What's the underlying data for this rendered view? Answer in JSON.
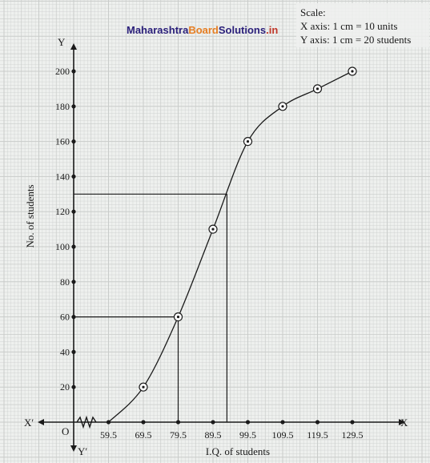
{
  "watermark": {
    "part1": "Maharashtra",
    "part2": "Board",
    "part3": "Solutions",
    "part4": ".in"
  },
  "scale_note": {
    "heading": "Scale:",
    "x_line": "X axis: 1 cm = 10 units",
    "y_line": "Y axis: 1 cm = 20 students"
  },
  "axes": {
    "x_end": "X",
    "x_neg": "X′",
    "y_end": "Y",
    "y_neg": "Y′",
    "origin": "O"
  },
  "colors": {
    "grid": "#c9ccca",
    "ink": "#1a1a1a",
    "wm_dark": "#2a1f7a",
    "wm_orange": "#e67e22",
    "wm_red": "#c0392b"
  },
  "chart_data": {
    "type": "line",
    "xlabel": "I.Q. of students",
    "ylabel": "No. of students",
    "x_ticks": [
      "59.5",
      "69.5",
      "79.5",
      "89.5",
      "99.5",
      "109.5",
      "119.5",
      "129.5"
    ],
    "y_ticks": [
      "20",
      "40",
      "60",
      "80",
      "100",
      "120",
      "140",
      "160",
      "180",
      "200"
    ],
    "xlim": [
      49.5,
      139.5
    ],
    "ylim": [
      0,
      200
    ],
    "series": [
      {
        "points": [
          {
            "x": 59.5,
            "y": 0
          },
          {
            "x": 69.5,
            "y": 20
          },
          {
            "x": 79.5,
            "y": 60
          },
          {
            "x": 89.5,
            "y": 110
          },
          {
            "x": 99.5,
            "y": 160
          },
          {
            "x": 109.5,
            "y": 180
          },
          {
            "x": 119.5,
            "y": 190
          },
          {
            "x": 129.5,
            "y": 200
          }
        ]
      }
    ],
    "guide_lines": [
      {
        "y": 60,
        "x": 79.5
      },
      {
        "y": 130,
        "x": 93.5
      }
    ],
    "grid": true
  }
}
